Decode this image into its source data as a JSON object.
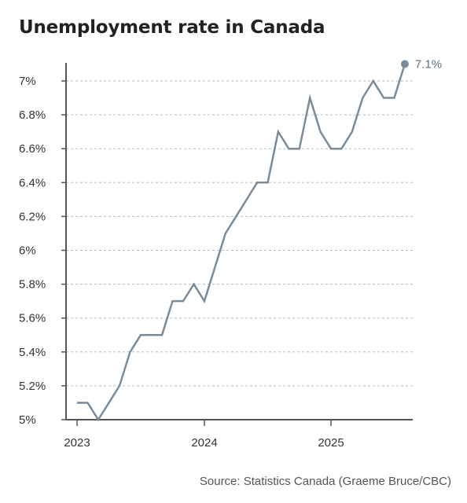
{
  "title": "Unemployment rate in Canada",
  "source": "Source: Statistics Canada (Graeme Bruce/CBC)",
  "colors": {
    "line": "#7a8c9c",
    "grid": "#bbbbbb",
    "axis": "#555555",
    "text": "#333333"
  },
  "chart_data": {
    "type": "line",
    "title": "Unemployment rate in Canada",
    "xlabel": "",
    "ylabel": "",
    "ylim": [
      5,
      7
    ],
    "yticks": [
      "5%",
      "5.2%",
      "5.4%",
      "5.6%",
      "5.8%",
      "6%",
      "6.2%",
      "6.4%",
      "6.6%",
      "6.8%",
      "7%"
    ],
    "xticks": [
      "2023",
      "2024",
      "2025"
    ],
    "grid": "horizontal dashed",
    "end_label": "7.1%",
    "series": [
      {
        "x": [
          "2023-01",
          "2023-02",
          "2023-03",
          "2023-04",
          "2023-05",
          "2023-06",
          "2023-07",
          "2023-08",
          "2023-09",
          "2023-10",
          "2023-11",
          "2023-12",
          "2024-01",
          "2024-02",
          "2024-03",
          "2024-04",
          "2024-05",
          "2024-06",
          "2024-07",
          "2024-08",
          "2024-09",
          "2024-10",
          "2024-11",
          "2024-12",
          "2025-01",
          "2025-02",
          "2025-03",
          "2025-04",
          "2025-05",
          "2025-06",
          "2025-07",
          "2025-08"
        ],
        "values": [
          5.1,
          5.1,
          5.0,
          5.1,
          5.2,
          5.4,
          5.5,
          5.5,
          5.5,
          5.7,
          5.7,
          5.8,
          5.7,
          5.9,
          6.1,
          6.2,
          6.3,
          6.4,
          6.4,
          6.7,
          6.6,
          6.6,
          6.9,
          6.7,
          6.6,
          6.6,
          6.7,
          6.9,
          7.0,
          6.9,
          6.9,
          7.1
        ]
      }
    ]
  }
}
